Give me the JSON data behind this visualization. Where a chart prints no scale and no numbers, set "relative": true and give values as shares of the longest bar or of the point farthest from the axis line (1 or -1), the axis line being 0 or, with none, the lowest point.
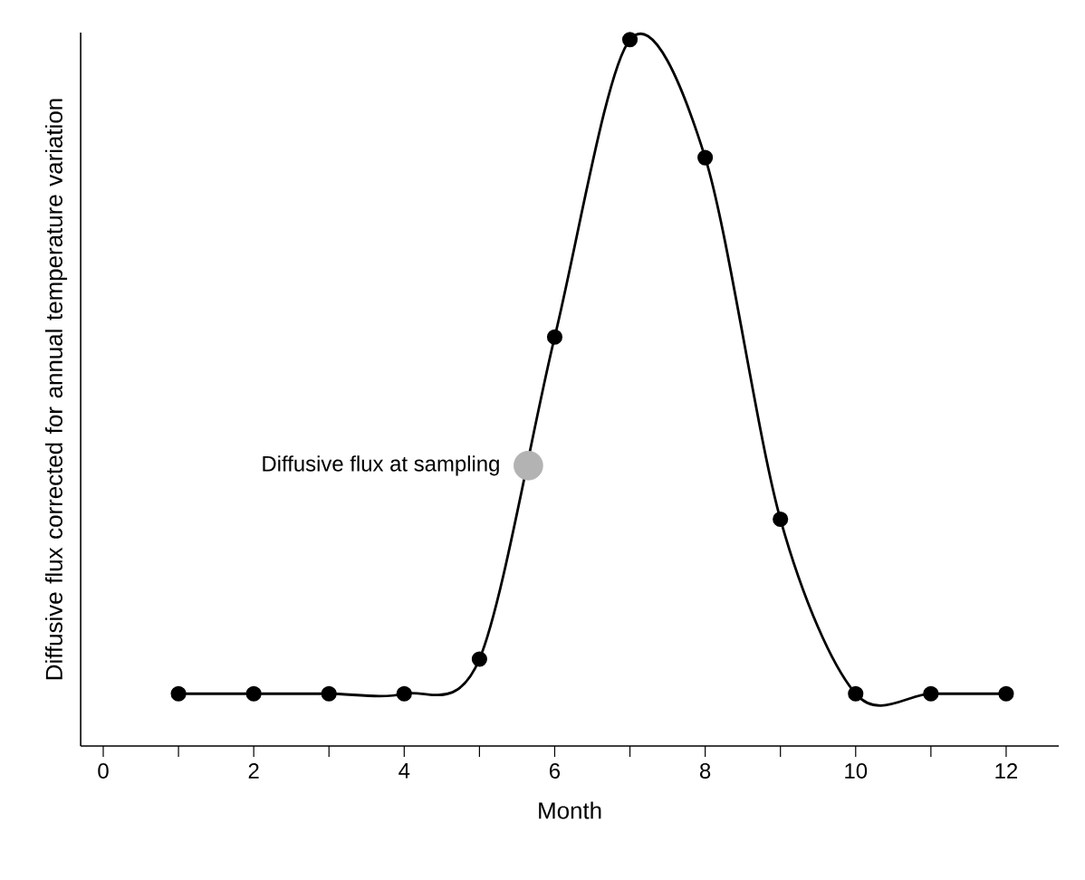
{
  "chart_data": {
    "type": "line",
    "xlabel": "Month",
    "ylabel": "Diffusive flux corrected for annual temperature variation",
    "relative": true,
    "marker": "circle",
    "line_style": "solid",
    "xlim": [
      -0.3,
      12.7
    ],
    "xticks": [
      0,
      {
        "value": 1,
        "label": null
      },
      2,
      {
        "value": 3,
        "label": null
      },
      4,
      {
        "value": 5,
        "label": null
      },
      6,
      {
        "value": 7,
        "label": null
      },
      8,
      {
        "value": 9,
        "label": null
      },
      10,
      {
        "value": 11,
        "label": null
      },
      12
    ],
    "series": [
      {
        "color": "#000000",
        "x": [
          1,
          2,
          3,
          4,
          5,
          6,
          7,
          8,
          9,
          10,
          11,
          12
        ],
        "values": [
          0.074,
          0.074,
          0.074,
          0.074,
          0.123,
          0.579,
          1,
          0.833,
          0.321,
          0.074,
          0.074,
          0.074
        ]
      },
      {
        "type": "scatter",
        "name": "Diffusive flux at sampling",
        "color": "#b3b3b3",
        "x": [
          5.65
        ],
        "values": [
          0.397
        ]
      }
    ]
  }
}
